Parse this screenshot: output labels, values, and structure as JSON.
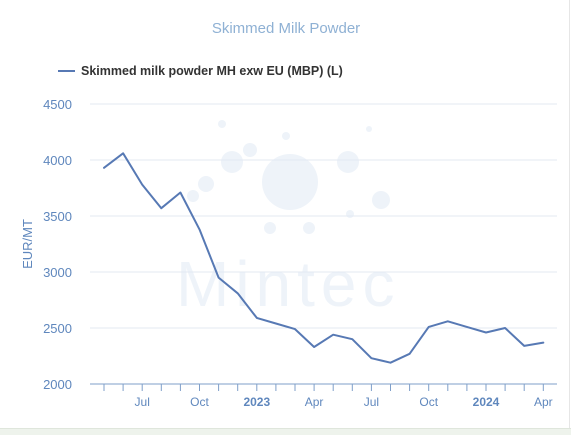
{
  "chart_data": {
    "type": "line",
    "title": "Skimmed Milk Powder",
    "ylabel": "EUR/MT",
    "xlabel": "",
    "ylim": [
      2000,
      4500
    ],
    "yticks": [
      2000,
      2500,
      3000,
      3500,
      4000,
      4500
    ],
    "grid": true,
    "legend_position": "top-left",
    "watermark": "Mintec",
    "x_ticks": [
      {
        "date": "2022-07",
        "label": "Jul",
        "bold": false
      },
      {
        "date": "2022-10",
        "label": "Oct",
        "bold": false
      },
      {
        "date": "2023-01",
        "label": "2023",
        "bold": true
      },
      {
        "date": "2023-04",
        "label": "Apr",
        "bold": false
      },
      {
        "date": "2023-07",
        "label": "Jul",
        "bold": false
      },
      {
        "date": "2023-10",
        "label": "Oct",
        "bold": false
      },
      {
        "date": "2024-01",
        "label": "2024",
        "bold": true
      },
      {
        "date": "2024-04",
        "label": "Apr",
        "bold": false
      }
    ],
    "x": [
      "2022-05",
      "2022-06",
      "2022-07",
      "2022-08",
      "2022-09",
      "2022-10",
      "2022-11",
      "2022-12",
      "2023-01",
      "2023-02",
      "2023-03",
      "2023-04",
      "2023-05",
      "2023-06",
      "2023-07",
      "2023-08",
      "2023-09",
      "2023-10",
      "2023-11",
      "2023-12",
      "2024-01",
      "2024-02",
      "2024-03",
      "2024-04"
    ],
    "series": [
      {
        "name": "Skimmed milk powder MH exw EU (MBP) (L)",
        "color": "#5779b4",
        "values": [
          3930,
          4060,
          3780,
          3570,
          3710,
          3380,
          2950,
          2810,
          2590,
          2540,
          2490,
          2330,
          2440,
          2400,
          2230,
          2190,
          2270,
          2510,
          2560,
          2510,
          2460,
          2500,
          2340,
          2370
        ]
      }
    ]
  }
}
